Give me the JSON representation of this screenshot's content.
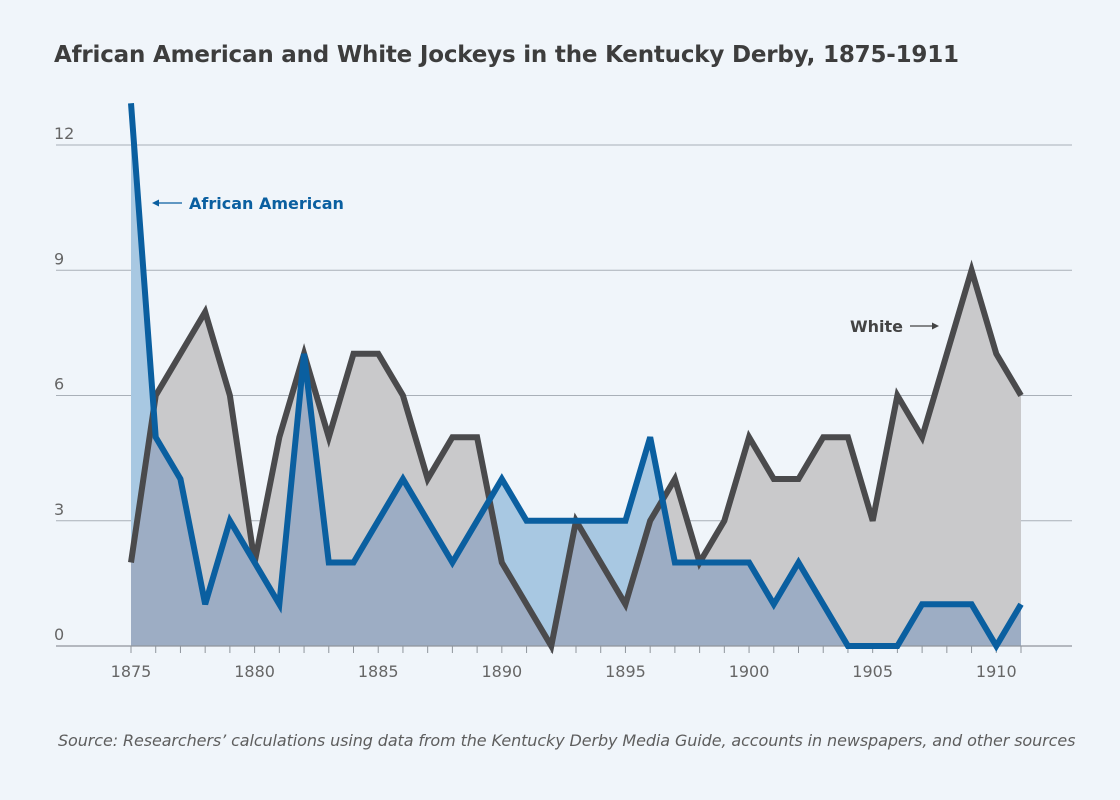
{
  "chart_data": {
    "type": "line",
    "title": "African American and White Jockeys in the Kentucky Derby, 1875-1911",
    "source": "Source: Researchers’ calculations using data from the Kentucky Derby Media Guide, accounts in newspapers, and other sources",
    "x": [
      1875,
      1876,
      1877,
      1878,
      1879,
      1880,
      1881,
      1882,
      1883,
      1884,
      1885,
      1886,
      1887,
      1888,
      1889,
      1890,
      1891,
      1892,
      1893,
      1894,
      1895,
      1896,
      1897,
      1898,
      1899,
      1900,
      1901,
      1902,
      1903,
      1904,
      1905,
      1906,
      1907,
      1908,
      1909,
      1910,
      1911
    ],
    "xticks": [
      1875,
      1880,
      1885,
      1890,
      1895,
      1900,
      1905,
      1910
    ],
    "yticks": [
      0,
      3,
      6,
      9,
      12
    ],
    "xlim": [
      1875,
      1911
    ],
    "ylim": [
      0,
      13
    ],
    "grid": true,
    "legend": "inline annotations",
    "series": [
      {
        "name": "African American",
        "color": "#0a5fa0",
        "fill": "#a8c8e2",
        "values": [
          13,
          5,
          4,
          1,
          3,
          2,
          1,
          7,
          2,
          2,
          3,
          4,
          3,
          2,
          3,
          4,
          3,
          3,
          3,
          3,
          3,
          5,
          2,
          2,
          2,
          2,
          1,
          2,
          1,
          0,
          0,
          0,
          1,
          1,
          1,
          0,
          1
        ]
      },
      {
        "name": "White",
        "color": "#4a4a4c",
        "fill": "#c9c9cb",
        "values": [
          2,
          6,
          7,
          8,
          6,
          2,
          5,
          7,
          5,
          7,
          7,
          6,
          4,
          5,
          5,
          2,
          1,
          0,
          3,
          2,
          1,
          3,
          4,
          2,
          3,
          5,
          4,
          4,
          5,
          5,
          3,
          6,
          5,
          7,
          9,
          7,
          6
        ]
      }
    ],
    "overlap_fill": "#9dadc4",
    "annotations": [
      {
        "text": "African American",
        "series": "African American",
        "arrow": "left"
      },
      {
        "text": "White",
        "series": "White",
        "arrow": "right"
      }
    ]
  }
}
